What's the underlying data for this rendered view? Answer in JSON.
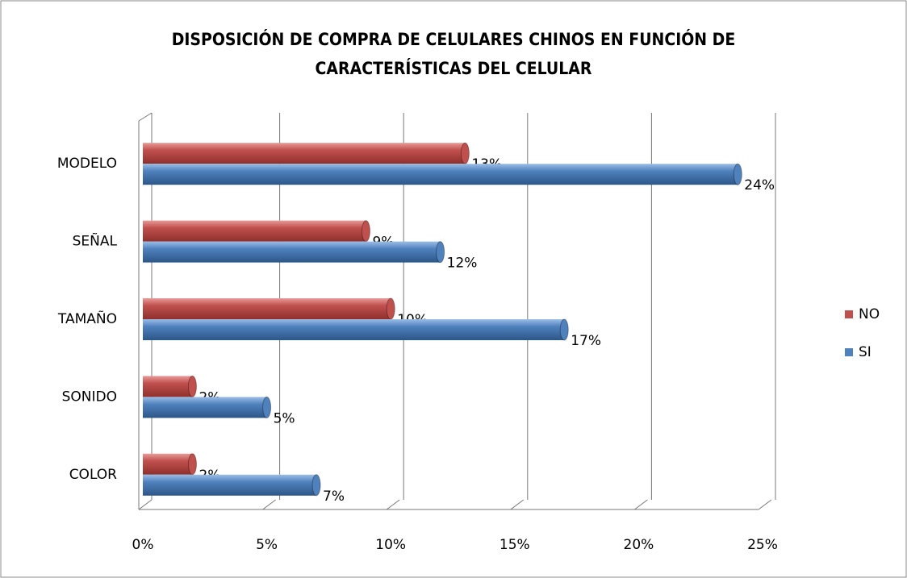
{
  "chart_data": {
    "type": "bar",
    "orientation": "horizontal",
    "title": [
      "DISPOSICIÓN DE COMPRA DE CELULARES CHINOS EN FUNCIÓN DE",
      "CARACTERÍSTICAS DEL CELULAR"
    ],
    "categories": [
      "MODELO",
      "SEÑAL",
      "TAMAÑO",
      "SONIDO",
      "COLOR"
    ],
    "series": [
      {
        "name": "NO",
        "color": "#c0504d",
        "values": [
          13,
          9,
          10,
          2,
          2
        ],
        "value_labels": [
          "13%",
          "9%",
          "10%",
          "2%",
          "2%"
        ]
      },
      {
        "name": "SI",
        "color": "#4f81bd",
        "values": [
          24,
          12,
          17,
          5,
          7
        ],
        "value_labels": [
          "24%",
          "12%",
          "17%",
          "5%",
          "7%"
        ]
      }
    ],
    "xlim": [
      0,
      25
    ],
    "xticks": [
      {
        "value": 0,
        "label": "0%"
      },
      {
        "value": 5,
        "label": "5%"
      },
      {
        "value": 10,
        "label": "10%"
      },
      {
        "value": 15,
        "label": "15%"
      },
      {
        "value": 20,
        "label": "20%"
      },
      {
        "value": 25,
        "label": "25%"
      }
    ],
    "grid": true,
    "legend": "right"
  }
}
